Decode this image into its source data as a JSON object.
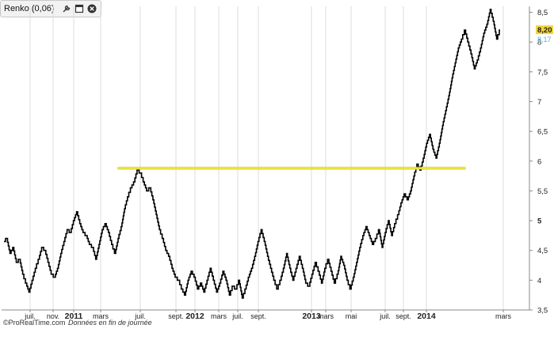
{
  "window": {
    "title": "Renko (0,06)",
    "icons": [
      "wrench-icon",
      "window-icon",
      "close-icon"
    ]
  },
  "price_badges": {
    "last": "8,20",
    "prev": "8,17",
    "last_bg": "#f2d63a",
    "prev_color": "#53b3e3"
  },
  "footer": {
    "brand": "©ProRealTime.com",
    "note": "Données en fin de journée"
  },
  "colors": {
    "series": "#000000",
    "resistance_line": "#e8e33a",
    "grid": "#dcdcdc",
    "axis": "#888888"
  },
  "chart_data": {
    "type": "line",
    "style": "renko",
    "box_size": 0.06,
    "ylim": [
      3.5,
      8.6
    ],
    "y_ticks": [
      "3,5",
      "4",
      "4,5",
      "5",
      "5,5",
      "6",
      "6,5",
      "7",
      "7,5",
      "8",
      "8,5"
    ],
    "x_labels": [
      {
        "label": "juil.",
        "bold": false
      },
      {
        "label": "nov.",
        "bold": false
      },
      {
        "label": "2011",
        "bold": true
      },
      {
        "label": "mars",
        "bold": false
      },
      {
        "label": "juil.",
        "bold": false
      },
      {
        "label": "sept.",
        "bold": false
      },
      {
        "label": "2012",
        "bold": true
      },
      {
        "label": "mars",
        "bold": false
      },
      {
        "label": "juil.",
        "bold": false
      },
      {
        "label": "sept.",
        "bold": false
      },
      {
        "label": "2013",
        "bold": true
      },
      {
        "label": "mars",
        "bold": false
      },
      {
        "label": "mai",
        "bold": false
      },
      {
        "label": "juil.",
        "bold": false
      },
      {
        "label": "sept.",
        "bold": false
      },
      {
        "label": "2014",
        "bold": true
      },
      {
        "label": "mars",
        "bold": false
      }
    ],
    "series": [
      {
        "values": [
          4.65,
          4.7,
          4.45,
          4.55,
          4.3,
          4.35,
          4.1,
          3.95,
          3.8,
          4.0,
          4.2,
          4.35,
          4.55,
          4.5,
          4.3,
          4.1,
          4.05,
          4.2,
          4.45,
          4.65,
          4.85,
          4.8,
          5.0,
          5.15,
          4.95,
          4.8,
          4.75,
          4.6,
          4.55,
          4.35,
          4.6,
          4.85,
          4.95,
          4.8,
          4.6,
          4.45,
          4.7,
          4.9,
          5.2,
          5.4,
          5.55,
          5.65,
          5.85,
          5.8,
          5.65,
          5.5,
          5.55,
          5.35,
          5.1,
          4.85,
          4.7,
          4.5,
          4.4,
          4.2,
          4.05,
          4.0,
          3.85,
          3.75,
          4.0,
          4.15,
          4.05,
          3.85,
          3.95,
          3.8,
          4.0,
          4.2,
          4.0,
          3.8,
          3.95,
          4.15,
          4.0,
          3.75,
          3.9,
          3.85,
          4.0,
          3.7,
          3.85,
          4.05,
          4.2,
          4.4,
          4.65,
          4.85,
          4.65,
          4.4,
          4.2,
          4.0,
          3.85,
          4.0,
          4.2,
          4.45,
          4.2,
          4.0,
          4.2,
          4.4,
          4.2,
          3.95,
          3.9,
          4.1,
          4.3,
          4.15,
          3.95,
          4.2,
          4.35,
          4.15,
          3.95,
          4.1,
          4.4,
          4.25,
          4.0,
          3.85,
          4.05,
          4.3,
          4.55,
          4.75,
          4.9,
          4.75,
          4.6,
          4.7,
          4.85,
          4.55,
          4.8,
          5.0,
          4.75,
          4.95,
          5.1,
          5.3,
          5.45,
          5.35,
          5.5,
          5.75,
          5.95,
          5.85,
          6.05,
          6.3,
          6.45,
          6.2,
          6.05,
          6.3,
          6.6,
          6.85,
          7.1,
          7.4,
          7.65,
          7.9,
          8.05,
          8.2,
          8.0,
          7.8,
          7.55,
          7.7,
          7.9,
          8.15,
          8.3,
          8.55,
          8.35,
          8.05,
          8.2
        ]
      }
    ],
    "horizontal_lines": [
      {
        "y": 5.88,
        "from": "mars 2011",
        "to": "2014"
      }
    ],
    "grid": true
  }
}
